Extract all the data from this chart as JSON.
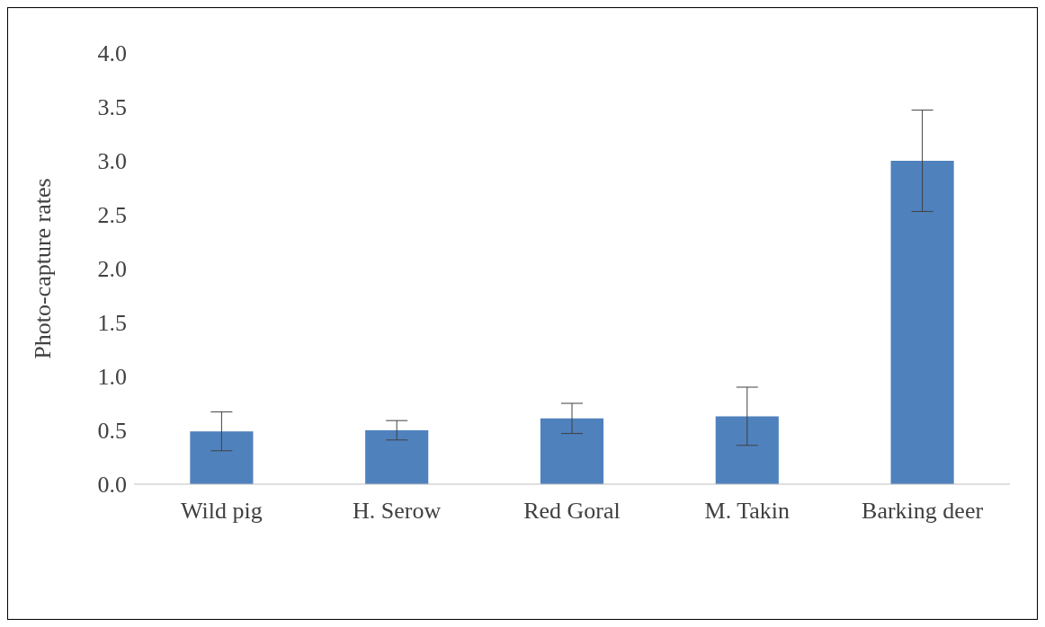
{
  "chart_data": {
    "type": "bar",
    "ylabel": "Photo-capture rates",
    "categories": [
      "Wild pig",
      "H. Serow",
      "Red Goral",
      "M. Takin",
      "Barking deer"
    ],
    "values": [
      0.49,
      0.5,
      0.61,
      0.63,
      3.0
    ],
    "errors": [
      0.18,
      0.09,
      0.14,
      0.27,
      0.47
    ],
    "color": "#4f81bd",
    "ylim": [
      0,
      4
    ],
    "yticks": [
      {
        "value": 0,
        "label": "0.0"
      },
      {
        "value": 0.5,
        "label": "0.5"
      },
      {
        "value": 1,
        "label": "1.0"
      },
      {
        "value": 1.5,
        "label": "1.5"
      },
      {
        "value": 2,
        "label": "2.0"
      },
      {
        "value": 2.5,
        "label": "2.5"
      },
      {
        "value": 3,
        "label": "3.0"
      },
      {
        "value": 3.5,
        "label": "3.5"
      },
      {
        "value": 4,
        "label": "4.0"
      }
    ],
    "grid": false,
    "legend": false
  }
}
